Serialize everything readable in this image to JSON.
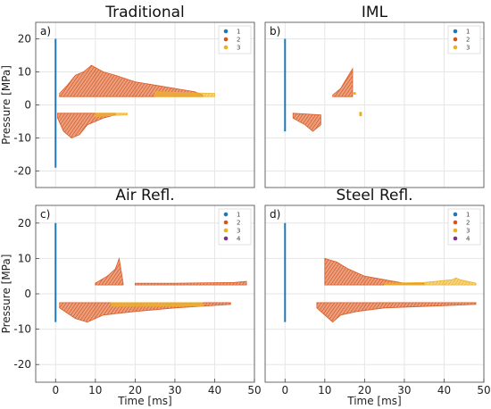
{
  "chart_data": [
    {
      "type": "scatter",
      "panel_label": "a)",
      "title": "Traditional",
      "xlabel": "",
      "ylabel": "Pressure [MPa]",
      "xlim": [
        -5,
        50
      ],
      "ylim": [
        -25,
        25
      ],
      "xticks": [],
      "yticks": [
        -20,
        -10,
        0,
        10,
        20
      ],
      "grid": true,
      "legend": "top-right",
      "series": [
        {
          "name": "1",
          "color": "#1f77b4",
          "kind": "vline",
          "x": 0,
          "y_range": [
            -19,
            20
          ]
        },
        {
          "name": "2",
          "color": "#d95319",
          "kind": "band",
          "upper": [
            [
              1,
              3.5
            ],
            [
              3,
              6
            ],
            [
              5,
              9
            ],
            [
              7,
              10
            ],
            [
              9,
              12
            ],
            [
              12,
              10
            ],
            [
              15,
              9
            ],
            [
              20,
              7
            ],
            [
              25,
              6
            ],
            [
              30,
              5
            ],
            [
              35,
              4
            ],
            [
              37,
              3
            ]
          ],
          "lower": [
            [
              1,
              2.5
            ],
            [
              37,
              2.5
            ]
          ]
        },
        {
          "name": "2",
          "color": "#d95319",
          "kind": "band",
          "upper": [
            [
              0.5,
              -2.5
            ],
            [
              15,
              -2.5
            ]
          ],
          "lower": [
            [
              0.5,
              -4
            ],
            [
              2,
              -8
            ],
            [
              4,
              -10
            ],
            [
              6,
              -9
            ],
            [
              8,
              -6
            ],
            [
              10,
              -5
            ],
            [
              12,
              -4
            ],
            [
              15,
              -3
            ]
          ]
        },
        {
          "name": "3",
          "color": "#edb120",
          "kind": "band",
          "upper": [
            [
              25,
              4
            ],
            [
              40,
              3.5
            ]
          ],
          "lower": [
            [
              25,
              2.5
            ],
            [
              40,
              2.5
            ]
          ]
        },
        {
          "name": "3",
          "color": "#edb120",
          "kind": "band",
          "upper": [
            [
              10,
              -2.5
            ],
            [
              18,
              -2.5
            ]
          ],
          "lower": [
            [
              10,
              -3.5
            ],
            [
              18,
              -3
            ]
          ]
        }
      ]
    },
    {
      "type": "scatter",
      "panel_label": "b)",
      "title": "IML",
      "xlabel": "",
      "ylabel": "",
      "xlim": [
        -5,
        50
      ],
      "ylim": [
        -25,
        25
      ],
      "xticks": [],
      "yticks": [],
      "grid": true,
      "legend": "top-right",
      "series": [
        {
          "name": "1",
          "color": "#1f77b4",
          "kind": "vline",
          "x": 0,
          "y_range": [
            -8,
            20
          ]
        },
        {
          "name": "2",
          "color": "#d95319",
          "kind": "band",
          "upper": [
            [
              12,
              3
            ],
            [
              14,
              5
            ],
            [
              16,
              9
            ],
            [
              17,
              11
            ],
            [
              17,
              3
            ]
          ],
          "lower": [
            [
              12,
              2.5
            ],
            [
              17,
              2.5
            ]
          ]
        },
        {
          "name": "2",
          "color": "#d95319",
          "kind": "band",
          "upper": [
            [
              2,
              -2.5
            ],
            [
              9,
              -3
            ]
          ],
          "lower": [
            [
              2,
              -4
            ],
            [
              5,
              -6
            ],
            [
              7,
              -8
            ],
            [
              9,
              -6
            ]
          ]
        },
        {
          "name": "3",
          "color": "#edb120",
          "kind": "points",
          "points": [
            [
              17.5,
              3.5
            ],
            [
              19,
              -2.5
            ],
            [
              19,
              -3
            ]
          ]
        }
      ]
    },
    {
      "type": "scatter",
      "panel_label": "c)",
      "title": "Air Refl.",
      "xlabel": "Time [ms]",
      "ylabel": "Pressure [MPa]",
      "xlim": [
        -5,
        50
      ],
      "ylim": [
        -25,
        25
      ],
      "xticks": [
        0,
        10,
        20,
        30,
        40,
        50
      ],
      "yticks": [
        -20,
        -10,
        0,
        10,
        20
      ],
      "grid": true,
      "legend": "top-right",
      "series": [
        {
          "name": "1",
          "color": "#1f77b4",
          "kind": "vline",
          "x": 0,
          "y_range": [
            -8,
            20
          ]
        },
        {
          "name": "2",
          "color": "#d95319",
          "kind": "band",
          "upper": [
            [
              10,
              3
            ],
            [
              13,
              5
            ],
            [
              15,
              7
            ],
            [
              16,
              10
            ],
            [
              17,
              3
            ]
          ],
          "lower": [
            [
              10,
              2.5
            ],
            [
              17,
              2.5
            ]
          ]
        },
        {
          "name": "2",
          "color": "#d95319",
          "kind": "band",
          "upper": [
            [
              1,
              -2.5
            ],
            [
              44,
              -2.5
            ]
          ],
          "lower": [
            [
              1,
              -4
            ],
            [
              5,
              -7
            ],
            [
              8,
              -8
            ],
            [
              12,
              -6
            ],
            [
              20,
              -5
            ],
            [
              30,
              -4
            ],
            [
              44,
              -3
            ]
          ]
        },
        {
          "name": "2",
          "color": "#d95319",
          "kind": "band",
          "upper": [
            [
              20,
              3
            ],
            [
              30,
              3
            ],
            [
              45,
              3.2
            ],
            [
              48,
              3.5
            ]
          ],
          "lower": [
            [
              20,
              2.5
            ],
            [
              48,
              2.5
            ]
          ]
        },
        {
          "name": "3",
          "color": "#edb120",
          "kind": "band",
          "upper": [
            [
              14,
              -2.5
            ],
            [
              37,
              -2.5
            ]
          ],
          "lower": [
            [
              14,
              -3.5
            ],
            [
              37,
              -3.5
            ]
          ]
        },
        {
          "name": "4",
          "color": "#7e2f8e",
          "kind": "points",
          "points": []
        }
      ]
    },
    {
      "type": "scatter",
      "panel_label": "d)",
      "title": "Steel Refl.",
      "xlabel": "Time [ms]",
      "ylabel": "",
      "xlim": [
        -5,
        50
      ],
      "ylim": [
        -25,
        25
      ],
      "xticks": [
        0,
        10,
        20,
        30,
        40,
        50
      ],
      "yticks": [],
      "grid": true,
      "legend": "top-right",
      "series": [
        {
          "name": "1",
          "color": "#1f77b4",
          "kind": "vline",
          "x": 0,
          "y_range": [
            -8,
            20
          ]
        },
        {
          "name": "2",
          "color": "#d95319",
          "kind": "band",
          "upper": [
            [
              10,
              10
            ],
            [
              13,
              9
            ],
            [
              16,
              7
            ],
            [
              20,
              5
            ],
            [
              25,
              4
            ],
            [
              30,
              3
            ],
            [
              35,
              3
            ]
          ],
          "lower": [
            [
              10,
              2.5
            ],
            [
              35,
              2.5
            ]
          ]
        },
        {
          "name": "2",
          "color": "#d95319",
          "kind": "band",
          "upper": [
            [
              8,
              -2.5
            ],
            [
              48,
              -2.5
            ]
          ],
          "lower": [
            [
              8,
              -4
            ],
            [
              10,
              -6
            ],
            [
              12,
              -8
            ],
            [
              14,
              -6
            ],
            [
              18,
              -5
            ],
            [
              25,
              -4
            ],
            [
              48,
              -3
            ]
          ]
        },
        {
          "name": "3",
          "color": "#edb120",
          "kind": "band",
          "upper": [
            [
              25,
              3
            ],
            [
              35,
              3.2
            ],
            [
              42,
              4
            ],
            [
              43,
              4.5
            ],
            [
              44,
              4
            ],
            [
              48,
              3
            ]
          ],
          "lower": [
            [
              25,
              2.5
            ],
            [
              48,
              2.5
            ]
          ]
        },
        {
          "name": "4",
          "color": "#7e2f8e",
          "kind": "points",
          "points": []
        }
      ]
    }
  ]
}
